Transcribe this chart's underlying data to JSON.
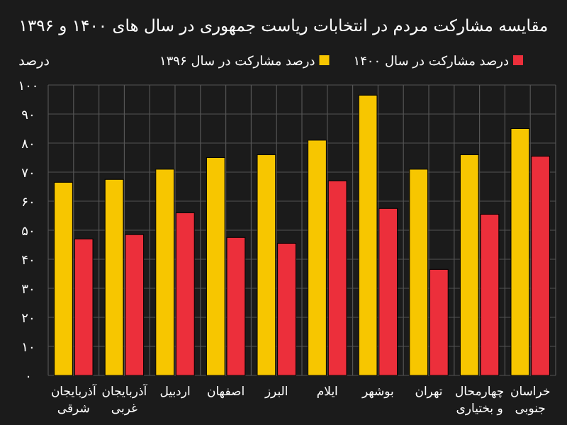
{
  "chart_data": {
    "type": "bar",
    "title": "مقایسه مشارکت مردم در انتخابات ریاست جمهوری در سال های ۱۴۰۰ و ۱۳۹۶",
    "ylabel": "درصد",
    "categories": [
      "آذربایجان شرقی",
      "آذربایجان غربی",
      "اردبیل",
      "اصفهان",
      "البرز",
      "ایلام",
      "بوشهر",
      "تهران",
      "چهارمحال و بختیاری",
      "خراسان جنوبی"
    ],
    "series": [
      {
        "name": "درصد مشارکت در سال ۱۳۹۶",
        "color": "#f7c600",
        "values": [
          66.5,
          67.5,
          71,
          75,
          76,
          81,
          96.5,
          71,
          76,
          85
        ]
      },
      {
        "name": "درصد مشارکت در سال ۱۴۰۰",
        "color": "#ec2f3b",
        "values": [
          47,
          48.5,
          56,
          47.5,
          45.5,
          67,
          57.5,
          36.5,
          55.5,
          75.5
        ]
      }
    ],
    "ylim": [
      0,
      100
    ],
    "yticks": [
      {
        "value": 0,
        "label": "۰"
      },
      {
        "value": 10,
        "label": "۱۰"
      },
      {
        "value": 20,
        "label": "۲۰"
      },
      {
        "value": 30,
        "label": "۳۰"
      },
      {
        "value": 40,
        "label": "۴۰"
      },
      {
        "value": 50,
        "label": "۵۰"
      },
      {
        "value": 60,
        "label": "۶۰"
      },
      {
        "value": 70,
        "label": "۷۰"
      },
      {
        "value": 80,
        "label": "۸۰"
      },
      {
        "value": 90,
        "label": "۹۰"
      },
      {
        "value": 100,
        "label": "۱۰۰"
      }
    ],
    "grid": true,
    "legend": "top"
  }
}
